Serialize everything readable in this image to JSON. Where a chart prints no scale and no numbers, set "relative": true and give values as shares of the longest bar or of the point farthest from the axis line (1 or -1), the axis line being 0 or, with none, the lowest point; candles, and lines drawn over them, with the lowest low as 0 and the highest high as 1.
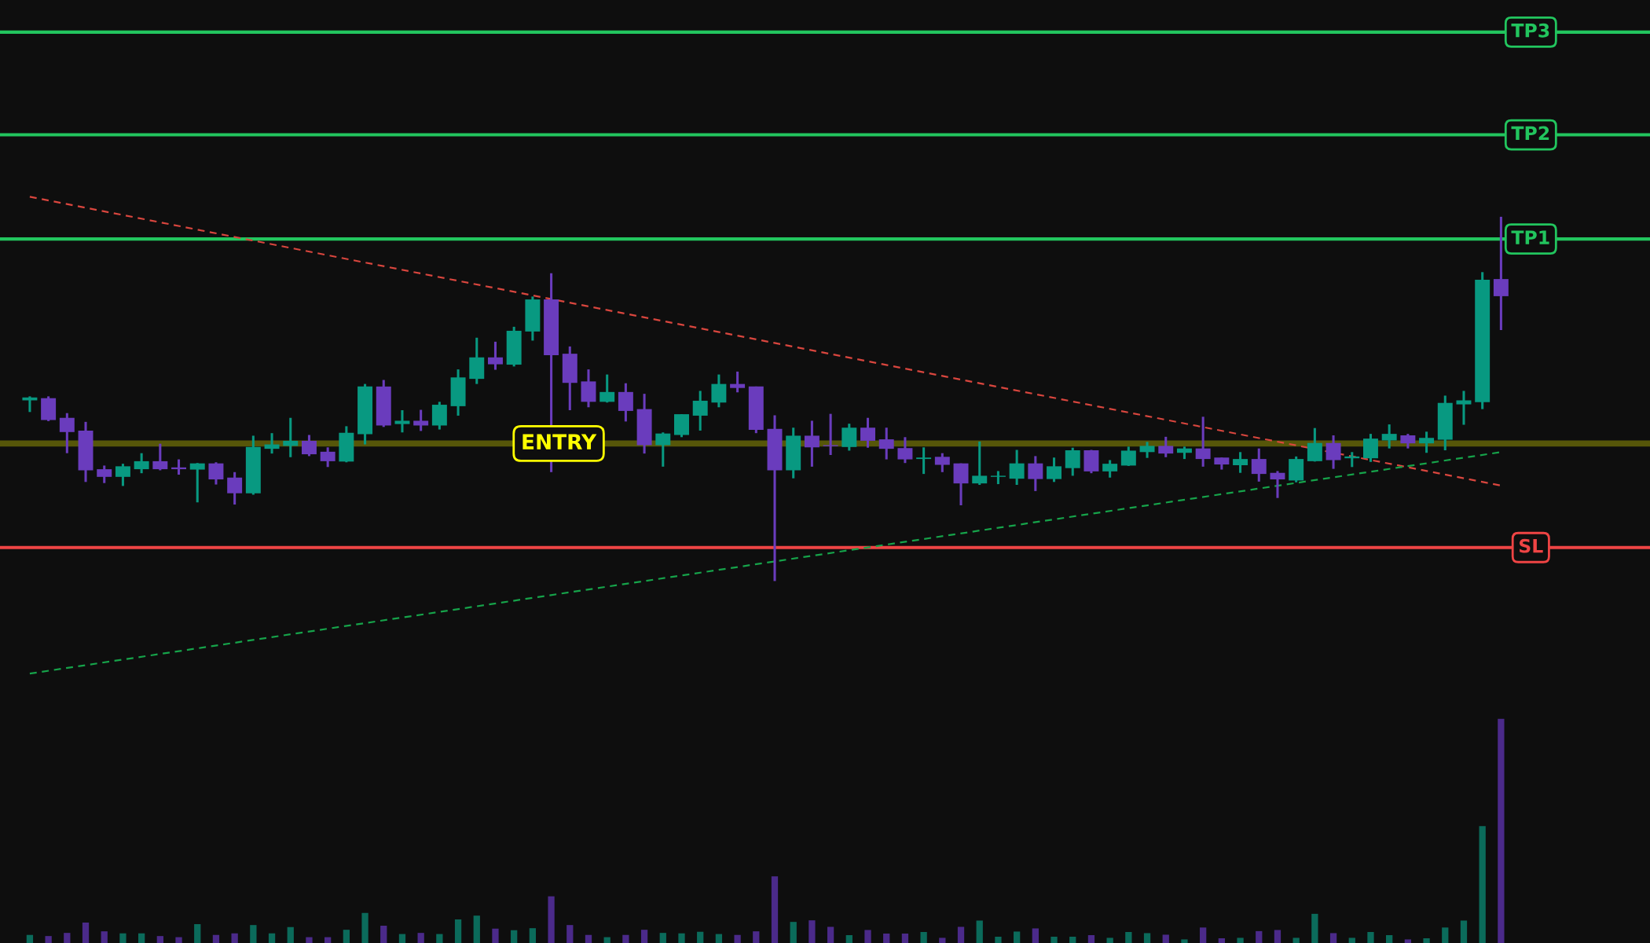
{
  "chart_data": [
    {
      "type": "candlestick",
      "relative": true,
      "categories": [
        null,
        null,
        null,
        null,
        null,
        null,
        null,
        null,
        null,
        null,
        null,
        null,
        null,
        null,
        null,
        null,
        null,
        null,
        null,
        null,
        null,
        null,
        null,
        null,
        null,
        null,
        null,
        null,
        null,
        null,
        null,
        null,
        null,
        null,
        null,
        null,
        null,
        null,
        null,
        null,
        null,
        null,
        null,
        null,
        null,
        null,
        null,
        null,
        null,
        null,
        null,
        null,
        null,
        null,
        null,
        null,
        null,
        null,
        null,
        null,
        null,
        null,
        null,
        null,
        null,
        null,
        null,
        null,
        null,
        null,
        null,
        null,
        null,
        null,
        null,
        null,
        null,
        null,
        null,
        null
      ],
      "ohlc": [
        [
          0.496,
          0.507,
          0.464,
          0.504
        ],
        [
          0.502,
          0.507,
          0.439,
          0.442
        ],
        [
          0.448,
          0.461,
          0.351,
          0.409
        ],
        [
          0.413,
          0.437,
          0.272,
          0.304
        ],
        [
          0.307,
          0.317,
          0.269,
          0.286
        ],
        [
          0.286,
          0.322,
          0.261,
          0.315
        ],
        [
          0.307,
          0.351,
          0.296,
          0.329
        ],
        [
          0.329,
          0.377,
          0.304,
          0.307
        ],
        [
          0.312,
          0.334,
          0.292,
          0.307
        ],
        [
          0.306,
          0.324,
          0.216,
          0.323
        ],
        [
          0.323,
          0.326,
          0.265,
          0.279
        ],
        [
          0.284,
          0.299,
          0.21,
          0.241
        ],
        [
          0.241,
          0.399,
          0.237,
          0.368
        ],
        [
          0.363,
          0.406,
          0.35,
          0.375
        ],
        [
          0.371,
          0.448,
          0.34,
          0.385
        ],
        [
          0.385,
          0.401,
          0.343,
          0.348
        ],
        [
          0.355,
          0.367,
          0.313,
          0.329
        ],
        [
          0.328,
          0.425,
          0.326,
          0.407
        ],
        [
          0.403,
          0.541,
          0.375,
          0.534
        ],
        [
          0.534,
          0.552,
          0.423,
          0.427
        ],
        [
          0.431,
          0.469,
          0.408,
          0.44
        ],
        [
          0.44,
          0.47,
          0.412,
          0.427
        ],
        [
          0.427,
          0.492,
          0.416,
          0.484
        ],
        [
          0.48,
          0.581,
          0.454,
          0.559
        ],
        [
          0.555,
          0.668,
          0.541,
          0.614
        ],
        [
          0.614,
          0.657,
          0.58,
          0.595
        ],
        [
          0.594,
          0.698,
          0.589,
          0.687
        ],
        [
          0.685,
          0.781,
          0.66,
          0.773
        ],
        [
          0.773,
          0.845,
          0.299,
          0.62
        ],
        [
          0.624,
          0.644,
          0.469,
          0.544
        ],
        [
          0.548,
          0.581,
          0.477,
          0.492
        ],
        [
          0.492,
          0.567,
          0.49,
          0.519
        ],
        [
          0.519,
          0.543,
          0.438,
          0.467
        ],
        [
          0.472,
          0.514,
          0.35,
          0.373
        ],
        [
          0.373,
          0.408,
          0.314,
          0.405
        ],
        [
          0.401,
          0.458,
          0.395,
          0.458
        ],
        [
          0.454,
          0.522,
          0.413,
          0.495
        ],
        [
          0.49,
          0.567,
          0.477,
          0.541
        ],
        [
          0.541,
          0.575,
          0.518,
          0.53
        ],
        [
          0.534,
          0.534,
          0.406,
          0.415
        ],
        [
          0.418,
          0.455,
          0.0,
          0.304
        ],
        [
          0.304,
          0.421,
          0.282,
          0.399
        ],
        [
          0.399,
          0.44,
          0.314,
          0.367
        ],
        [
          0.373,
          0.459,
          0.346,
          0.37
        ],
        [
          0.368,
          0.432,
          0.358,
          0.421
        ],
        [
          0.421,
          0.448,
          0.366,
          0.385
        ],
        [
          0.389,
          0.421,
          0.334,
          0.363
        ],
        [
          0.365,
          0.395,
          0.324,
          0.334
        ],
        [
          0.335,
          0.367,
          0.294,
          0.339
        ],
        [
          0.341,
          0.351,
          0.299,
          0.319
        ],
        [
          0.323,
          0.323,
          0.208,
          0.268
        ],
        [
          0.268,
          0.383,
          0.264,
          0.289
        ],
        [
          0.286,
          0.302,
          0.266,
          0.289
        ],
        [
          0.281,
          0.36,
          0.264,
          0.323
        ],
        [
          0.323,
          0.343,
          0.247,
          0.28
        ],
        [
          0.28,
          0.339,
          0.272,
          0.315
        ],
        [
          0.31,
          0.366,
          0.289,
          0.359
        ],
        [
          0.359,
          0.36,
          0.296,
          0.301
        ],
        [
          0.301,
          0.332,
          0.284,
          0.322
        ],
        [
          0.317,
          0.369,
          0.316,
          0.358
        ],
        [
          0.354,
          0.382,
          0.338,
          0.371
        ],
        [
          0.371,
          0.396,
          0.34,
          0.35
        ],
        [
          0.352,
          0.369,
          0.335,
          0.364
        ],
        [
          0.364,
          0.451,
          0.314,
          0.335
        ],
        [
          0.339,
          0.339,
          0.306,
          0.32
        ],
        [
          0.318,
          0.354,
          0.297,
          0.335
        ],
        [
          0.335,
          0.364,
          0.273,
          0.294
        ],
        [
          0.297,
          0.302,
          0.228,
          0.279
        ],
        [
          0.276,
          0.342,
          0.271,
          0.335
        ],
        [
          0.329,
          0.42,
          0.328,
          0.379
        ],
        [
          0.379,
          0.4,
          0.308,
          0.332
        ],
        [
          0.337,
          0.354,
          0.313,
          0.342
        ],
        [
          0.337,
          0.404,
          0.327,
          0.391
        ],
        [
          0.386,
          0.43,
          0.364,
          0.404
        ],
        [
          0.4,
          0.404,
          0.364,
          0.378
        ],
        [
          0.378,
          0.41,
          0.352,
          0.393
        ],
        [
          0.388,
          0.509,
          0.359,
          0.489
        ],
        [
          0.485,
          0.522,
          0.429,
          0.496
        ],
        [
          0.491,
          0.848,
          0.472,
          0.827
        ],
        [
          0.829,
          1.0,
          0.689,
          0.782
        ]
      ],
      "colors": [
        "#089981",
        "#6a3cbd",
        "#6a3cbd",
        "#6a3cbd",
        "#6a3cbd",
        "#089981",
        "#089981",
        "#6a3cbd",
        "#6a3cbd",
        "#089981",
        "#6a3cbd",
        "#6a3cbd",
        "#089981",
        "#089981",
        "#089981",
        "#6a3cbd",
        "#6a3cbd",
        "#089981",
        "#089981",
        "#6a3cbd",
        "#089981",
        "#6a3cbd",
        "#089981",
        "#089981",
        "#089981",
        "#6a3cbd",
        "#089981",
        "#089981",
        "#6a3cbd",
        "#6a3cbd",
        "#6a3cbd",
        "#089981",
        "#6a3cbd",
        "#6a3cbd",
        "#089981",
        "#089981",
        "#089981",
        "#089981",
        "#6a3cbd",
        "#6a3cbd",
        "#6a3cbd",
        "#089981",
        "#6a3cbd",
        "#6a3cbd",
        "#089981",
        "#6a3cbd",
        "#6a3cbd",
        "#6a3cbd",
        "#089981",
        "#6a3cbd",
        "#6a3cbd",
        "#089981",
        "#089981",
        "#089981",
        "#6a3cbd",
        "#089981",
        "#089981",
        "#6a3cbd",
        "#089981",
        "#089981",
        "#089981",
        "#6a3cbd",
        "#089981",
        "#6a3cbd",
        "#6a3cbd",
        "#089981",
        "#6a3cbd",
        "#6a3cbd",
        "#089981",
        "#089981",
        "#6a3cbd",
        "#089981",
        "#089981",
        "#089981",
        "#6a3cbd",
        "#089981",
        "#089981",
        "#089981",
        "#089981",
        "#6a3cbd"
      ],
      "series": [
        {
          "type": "line",
          "values": [
            1.055,
            null,
            null,
            null,
            null,
            null,
            null,
            null,
            null,
            null,
            null,
            null,
            null,
            null,
            null,
            null,
            null,
            null,
            null,
            null,
            null,
            null,
            null,
            null,
            null,
            null,
            null,
            null,
            null,
            null,
            null,
            null,
            null,
            null,
            null,
            null,
            null,
            null,
            null,
            null,
            null,
            null,
            null,
            null,
            null,
            null,
            null,
            null,
            null,
            null,
            null,
            null,
            null,
            null,
            null,
            null,
            null,
            null,
            null,
            null,
            null,
            null,
            null,
            null,
            null,
            null,
            null,
            null,
            null,
            null,
            null,
            null,
            null,
            null,
            null,
            null,
            null,
            null,
            null,
            0.262
          ],
          "color": "#d9463e",
          "line_style": "dashed"
        },
        {
          "type": "line",
          "values": [
            -0.254,
            null,
            null,
            null,
            null,
            null,
            null,
            null,
            null,
            null,
            null,
            null,
            null,
            null,
            null,
            null,
            null,
            null,
            null,
            null,
            null,
            null,
            null,
            null,
            null,
            null,
            null,
            null,
            null,
            null,
            null,
            null,
            null,
            null,
            null,
            null,
            null,
            null,
            null,
            null,
            null,
            null,
            null,
            null,
            null,
            null,
            null,
            null,
            null,
            null,
            null,
            null,
            null,
            null,
            null,
            null,
            null,
            null,
            null,
            null,
            null,
            null,
            null,
            null,
            null,
            null,
            null,
            null,
            null,
            null,
            null,
            null,
            null,
            null,
            null,
            null,
            null,
            null,
            null,
            0.354
          ],
          "color": "#16a34a",
          "line_style": "dashed"
        }
      ],
      "ref_lines": [
        {
          "axis": "y",
          "value": 1.507,
          "label": "TP3",
          "color": "#22c55e",
          "line_style": "solid"
        },
        {
          "axis": "y",
          "value": 1.225,
          "label": "TP2",
          "color": "#22c55e",
          "line_style": "solid"
        },
        {
          "axis": "y",
          "value": 0.939,
          "label": "TP1",
          "color": "#22c55e",
          "line_style": "solid"
        },
        {
          "axis": "y",
          "value": 0.092,
          "label": "SL",
          "color": "#ef4444",
          "line_style": "solid"
        }
      ],
      "bands": [
        {
          "axis": "y",
          "from": 0.369,
          "to": 0.386,
          "label": "ENTRY",
          "color": "#ffff00"
        }
      ]
    },
    {
      "type": "bar",
      "relative": true,
      "categories": [
        null,
        null,
        null,
        null,
        null,
        null,
        null,
        null,
        null,
        null,
        null,
        null,
        null,
        null,
        null,
        null,
        null,
        null,
        null,
        null,
        null,
        null,
        null,
        null,
        null,
        null,
        null,
        null,
        null,
        null,
        null,
        null,
        null,
        null,
        null,
        null,
        null,
        null,
        null,
        null,
        null,
        null,
        null,
        null,
        null,
        null,
        null,
        null,
        null,
        null,
        null,
        null,
        null,
        null,
        null,
        null,
        null,
        null,
        null,
        null,
        null,
        null,
        null,
        null,
        null,
        null,
        null,
        null,
        null,
        null,
        null,
        null,
        null,
        null,
        null,
        null,
        null,
        null,
        null,
        null
      ],
      "values": [
        0.036,
        0.031,
        0.045,
        0.091,
        0.052,
        0.043,
        0.043,
        0.031,
        0.026,
        0.084,
        0.036,
        0.043,
        0.08,
        0.043,
        0.071,
        0.026,
        0.026,
        0.059,
        0.134,
        0.077,
        0.04,
        0.045,
        0.04,
        0.105,
        0.122,
        0.064,
        0.057,
        0.066,
        0.208,
        0.08,
        0.036,
        0.026,
        0.036,
        0.059,
        0.045,
        0.043,
        0.05,
        0.04,
        0.036,
        0.052,
        0.297,
        0.094,
        0.101,
        0.072,
        0.035,
        0.058,
        0.042,
        0.042,
        0.049,
        0.023,
        0.072,
        0.1,
        0.028,
        0.051,
        0.065,
        0.028,
        0.028,
        0.035,
        0.023,
        0.049,
        0.044,
        0.037,
        0.016,
        0.069,
        0.021,
        0.023,
        0.053,
        0.058,
        0.023,
        0.13,
        0.044,
        0.023,
        0.049,
        0.035,
        0.016,
        0.021,
        0.069,
        0.1,
        0.521,
        1
      ],
      "colors": [
        "#0b6b5b",
        "#4b2a8a",
        "#4b2a8a",
        "#4b2a8a",
        "#4b2a8a",
        "#0b6b5b",
        "#0b6b5b",
        "#4b2a8a",
        "#4b2a8a",
        "#0b6b5b",
        "#4b2a8a",
        "#4b2a8a",
        "#0b6b5b",
        "#0b6b5b",
        "#0b6b5b",
        "#4b2a8a",
        "#4b2a8a",
        "#0b6b5b",
        "#0b6b5b",
        "#4b2a8a",
        "#0b6b5b",
        "#4b2a8a",
        "#0b6b5b",
        "#0b6b5b",
        "#0b6b5b",
        "#4b2a8a",
        "#0b6b5b",
        "#0b6b5b",
        "#4b2a8a",
        "#4b2a8a",
        "#4b2a8a",
        "#0b6b5b",
        "#4b2a8a",
        "#4b2a8a",
        "#0b6b5b",
        "#0b6b5b",
        "#0b6b5b",
        "#0b6b5b",
        "#4b2a8a",
        "#4b2a8a",
        "#4b2a8a",
        "#0b6b5b",
        "#4b2a8a",
        "#4b2a8a",
        "#0b6b5b",
        "#4b2a8a",
        "#4b2a8a",
        "#4b2a8a",
        "#0b6b5b",
        "#4b2a8a",
        "#4b2a8a",
        "#0b6b5b",
        "#0b6b5b",
        "#0b6b5b",
        "#4b2a8a",
        "#0b6b5b",
        "#0b6b5b",
        "#4b2a8a",
        "#0b6b5b",
        "#0b6b5b",
        "#0b6b5b",
        "#4b2a8a",
        "#0b6b5b",
        "#4b2a8a",
        "#4b2a8a",
        "#0b6b5b",
        "#4b2a8a",
        "#4b2a8a",
        "#0b6b5b",
        "#0b6b5b",
        "#4b2a8a",
        "#0b6b5b",
        "#0b6b5b",
        "#0b6b5b",
        "#4b2a8a",
        "#0b6b5b",
        "#0b6b5b",
        "#0b6b5b",
        "#0b6b5b",
        "#4b2a8a"
      ]
    }
  ]
}
